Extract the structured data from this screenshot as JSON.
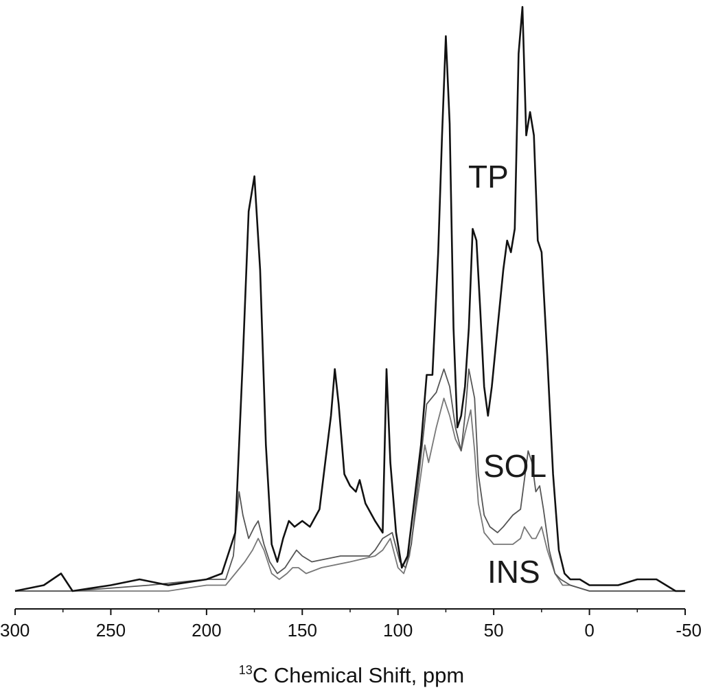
{
  "chart_data": {
    "type": "line",
    "xlabel_sup": "13",
    "xlabel_main": "C Chemical Shift, ppm",
    "xlim": [
      300,
      -50
    ],
    "ylim": [
      0,
      100
    ],
    "x_reversed": true,
    "xticks": [
      300,
      250,
      200,
      150,
      100,
      50,
      0,
      -50
    ],
    "xtick_labels": [
      "300",
      "250",
      "200",
      "150",
      "100",
      "50",
      "0",
      "-50"
    ],
    "grid": false,
    "series": [
      {
        "name": "TP",
        "color": "#111111",
        "points": [
          [
            300,
            0
          ],
          [
            285,
            1
          ],
          [
            276,
            3
          ],
          [
            270,
            0
          ],
          [
            250,
            1
          ],
          [
            235,
            2
          ],
          [
            220,
            1
          ],
          [
            200,
            2
          ],
          [
            192,
            3
          ],
          [
            185,
            10
          ],
          [
            181,
            40
          ],
          [
            178,
            65
          ],
          [
            175,
            71
          ],
          [
            172,
            55
          ],
          [
            169,
            25
          ],
          [
            166,
            8
          ],
          [
            163,
            5
          ],
          [
            160,
            9
          ],
          [
            157,
            12
          ],
          [
            154,
            11
          ],
          [
            150,
            12
          ],
          [
            146,
            11
          ],
          [
            141,
            14
          ],
          [
            138,
            22
          ],
          [
            135,
            30
          ],
          [
            133,
            38
          ],
          [
            131,
            32
          ],
          [
            128,
            20
          ],
          [
            125,
            18
          ],
          [
            122,
            17
          ],
          [
            120,
            19
          ],
          [
            117,
            15
          ],
          [
            112,
            12
          ],
          [
            108,
            10
          ],
          [
            106,
            38
          ],
          [
            104,
            22
          ],
          [
            101,
            10
          ],
          [
            98,
            4
          ],
          [
            95,
            6
          ],
          [
            92,
            14
          ],
          [
            88,
            25
          ],
          [
            85,
            37
          ],
          [
            82,
            37
          ],
          [
            79,
            58
          ],
          [
            77,
            78
          ],
          [
            75,
            95
          ],
          [
            73,
            80
          ],
          [
            71,
            45
          ],
          [
            69,
            28
          ],
          [
            67,
            30
          ],
          [
            65,
            35
          ],
          [
            63,
            45
          ],
          [
            61,
            62
          ],
          [
            59,
            60
          ],
          [
            57,
            48
          ],
          [
            55,
            35
          ],
          [
            53,
            30
          ],
          [
            51,
            35
          ],
          [
            48,
            45
          ],
          [
            45,
            55
          ],
          [
            43,
            60
          ],
          [
            41,
            58
          ],
          [
            39,
            62
          ],
          [
            37,
            92
          ],
          [
            35,
            100
          ],
          [
            33,
            78
          ],
          [
            31,
            82
          ],
          [
            29,
            78
          ],
          [
            27,
            60
          ],
          [
            25,
            58
          ],
          [
            22,
            40
          ],
          [
            19,
            20
          ],
          [
            16,
            7
          ],
          [
            13,
            3
          ],
          [
            10,
            2
          ],
          [
            5,
            2
          ],
          [
            0,
            1
          ],
          [
            -15,
            1
          ],
          [
            -25,
            2
          ],
          [
            -35,
            2
          ],
          [
            -45,
            0
          ],
          [
            -50,
            0
          ]
        ]
      },
      {
        "name": "SOL",
        "color": "#555555",
        "points": [
          [
            300,
            0
          ],
          [
            270,
            0
          ],
          [
            230,
            1
          ],
          [
            200,
            2
          ],
          [
            190,
            2
          ],
          [
            186,
            6
          ],
          [
            183,
            17
          ],
          [
            181,
            13
          ],
          [
            178,
            9
          ],
          [
            175,
            11
          ],
          [
            173,
            12
          ],
          [
            170,
            8
          ],
          [
            167,
            5
          ],
          [
            163,
            3
          ],
          [
            159,
            4
          ],
          [
            155,
            6
          ],
          [
            153,
            7
          ],
          [
            150,
            6
          ],
          [
            145,
            5
          ],
          [
            130,
            6
          ],
          [
            115,
            6
          ],
          [
            112,
            7
          ],
          [
            108,
            9
          ],
          [
            103,
            10
          ],
          [
            99,
            5
          ],
          [
            96,
            4
          ],
          [
            93,
            8
          ],
          [
            90,
            17
          ],
          [
            87,
            26
          ],
          [
            85,
            32
          ],
          [
            80,
            34
          ],
          [
            76,
            38
          ],
          [
            73,
            35
          ],
          [
            70,
            28
          ],
          [
            67,
            24
          ],
          [
            65,
            30
          ],
          [
            63,
            38
          ],
          [
            60,
            33
          ],
          [
            58,
            20
          ],
          [
            55,
            13
          ],
          [
            52,
            11
          ],
          [
            48,
            10
          ],
          [
            45,
            11
          ],
          [
            40,
            13
          ],
          [
            36,
            14
          ],
          [
            34,
            19
          ],
          [
            32,
            24
          ],
          [
            30,
            22
          ],
          [
            28,
            17
          ],
          [
            26,
            18
          ],
          [
            24,
            14
          ],
          [
            21,
            7
          ],
          [
            18,
            3
          ],
          [
            15,
            2
          ],
          [
            10,
            1
          ],
          [
            0,
            0
          ],
          [
            -50,
            0
          ]
        ]
      },
      {
        "name": "INS",
        "color": "#777777",
        "points": [
          [
            300,
            0
          ],
          [
            260,
            0
          ],
          [
            220,
            0
          ],
          [
            200,
            1
          ],
          [
            190,
            1
          ],
          [
            185,
            3
          ],
          [
            180,
            5
          ],
          [
            176,
            7
          ],
          [
            173,
            9
          ],
          [
            170,
            7
          ],
          [
            166,
            3
          ],
          [
            162,
            2
          ],
          [
            158,
            3
          ],
          [
            155,
            4
          ],
          [
            152,
            4
          ],
          [
            148,
            3
          ],
          [
            140,
            4
          ],
          [
            125,
            5
          ],
          [
            112,
            6
          ],
          [
            108,
            7
          ],
          [
            104,
            9
          ],
          [
            100,
            4
          ],
          [
            97,
            3
          ],
          [
            94,
            6
          ],
          [
            91,
            13
          ],
          [
            88,
            20
          ],
          [
            86,
            25
          ],
          [
            84,
            22
          ],
          [
            80,
            28
          ],
          [
            76,
            33
          ],
          [
            73,
            30
          ],
          [
            70,
            26
          ],
          [
            67,
            24
          ],
          [
            65,
            27
          ],
          [
            62,
            31
          ],
          [
            60,
            24
          ],
          [
            58,
            15
          ],
          [
            55,
            10
          ],
          [
            50,
            8
          ],
          [
            45,
            8
          ],
          [
            40,
            8
          ],
          [
            36,
            9
          ],
          [
            34,
            11
          ],
          [
            32,
            10
          ],
          [
            30,
            9
          ],
          [
            28,
            9
          ],
          [
            25,
            11
          ],
          [
            22,
            7
          ],
          [
            18,
            3
          ],
          [
            14,
            1
          ],
          [
            10,
            1
          ],
          [
            0,
            0
          ],
          [
            -50,
            0
          ]
        ]
      }
    ],
    "series_labels": [
      "TP",
      "SOL",
      "INS"
    ]
  }
}
